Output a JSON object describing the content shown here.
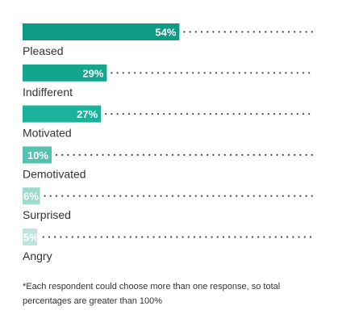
{
  "chart_data": {
    "type": "bar",
    "orientation": "horizontal",
    "categories": [
      "Pleased",
      "Indifferent",
      "Motivated",
      "Demotivated",
      "Surprised",
      "Angry"
    ],
    "values": [
      54,
      29,
      27,
      10,
      6,
      5
    ],
    "value_labels": [
      "54%",
      "29%",
      "27%",
      "10%",
      "6%",
      "5%"
    ],
    "colors": [
      "#0f9b83",
      "#14a68d",
      "#1ab29a",
      "#55c2ae",
      "#9fdacf",
      "#bfe6de"
    ],
    "xlim": [
      0,
      100
    ],
    "note": [
      "*Each respondent could choose more than one response, so total",
      "percentages are greater than 100%"
    ]
  }
}
